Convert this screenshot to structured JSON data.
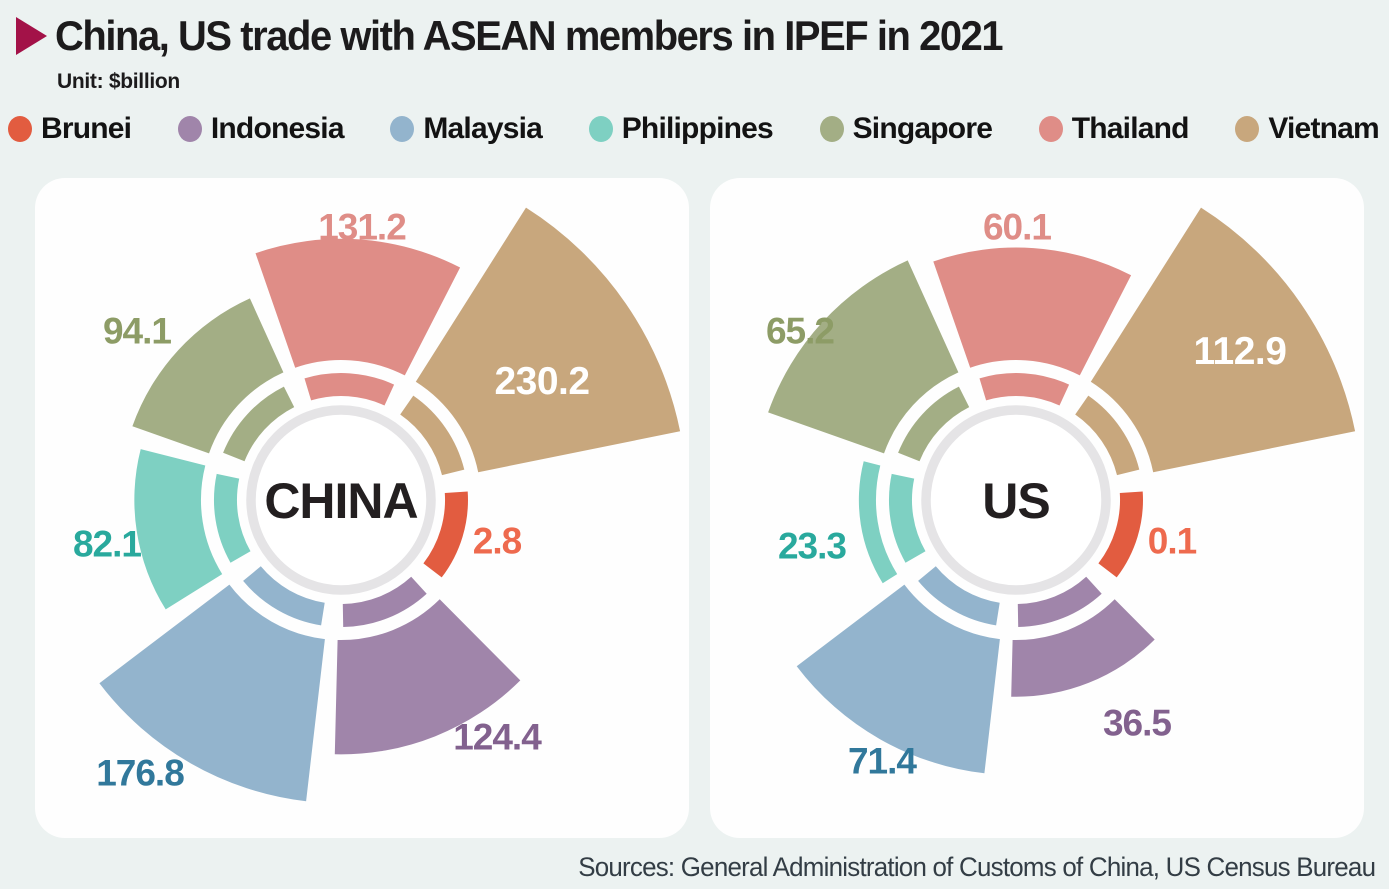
{
  "header": {
    "title": "China, US trade with ASEAN members in IPEF in 2021",
    "unit_label": "Unit: $billion",
    "accent_color": "#a31248"
  },
  "source_line": "Sources: General Administration of Customs of China, US Census Bureau",
  "chart_data": {
    "type": "pie",
    "variant": "nightingale-rose-polar",
    "title": "China, US trade with ASEAN members in IPEF in 2021",
    "unit": "$billion",
    "legend_position": "top",
    "categories": [
      "Brunei",
      "Indonesia",
      "Malaysia",
      "Philippines",
      "Singapore",
      "Thailand",
      "Vietnam"
    ],
    "series": [
      {
        "name": "CHINA",
        "values": [
          2.8,
          124.4,
          176.8,
          82.1,
          94.1,
          131.2,
          230.2
        ]
      },
      {
        "name": "US",
        "values": [
          0.1,
          36.5,
          71.4,
          23.3,
          65.2,
          60.1,
          112.9
        ]
      }
    ],
    "sector_order_clockwise_from_top": [
      "Thailand",
      "Vietnam",
      "Brunei",
      "Indonesia",
      "Malaysia",
      "Philippines",
      "Singapore"
    ],
    "colors": {
      "Brunei": {
        "wedge": "#e25c40",
        "value_label": "#ee6a4e"
      },
      "Indonesia": {
        "wedge": "#a085aa",
        "value_label": "#82618e"
      },
      "Malaysia": {
        "wedge": "#93b4cd",
        "value_label": "#31789b"
      },
      "Philippines": {
        "wedge": "#7ed0c2",
        "value_label": "#29a99d"
      },
      "Singapore": {
        "wedge": "#a3ae85",
        "value_label": "#8d9c66"
      },
      "Thailand": {
        "wedge": "#df8d87",
        "value_label": "#df8d87"
      },
      "Vietnam": {
        "wedge": "#c8a77d",
        "value_label": "#ffffff"
      }
    },
    "value_labels_inside_wedge": [
      "Vietnam"
    ],
    "center_ring_color": "#e5e4e6",
    "panel_color": "#fefefe",
    "background_color": "#ecf2f1"
  }
}
